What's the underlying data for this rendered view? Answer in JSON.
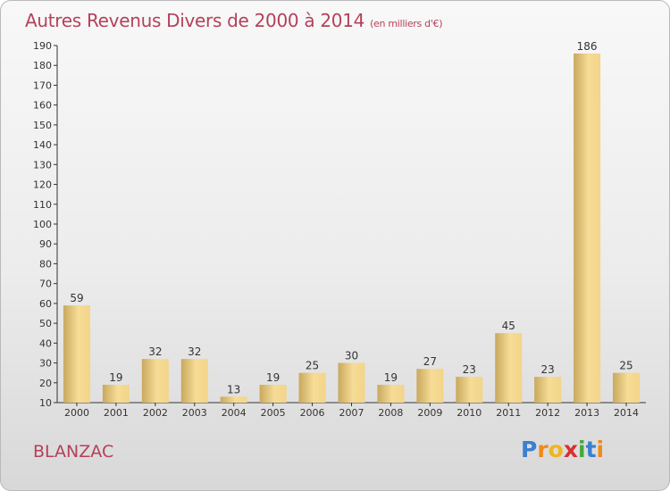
{
  "title": "Autres Revenus Divers de 2000 à 2014",
  "subtitle": "(en milliers d'€)",
  "town": "BLANZAC",
  "logo_text": "Proxiti",
  "colors": {
    "accent": "#b5405a",
    "bar_light": "#f6dc96",
    "bar_dark": "#c9a85e"
  },
  "chart_data": {
    "type": "bar",
    "categories": [
      "2000",
      "2001",
      "2002",
      "2003",
      "2004",
      "2005",
      "2006",
      "2007",
      "2008",
      "2009",
      "2010",
      "2011",
      "2012",
      "2013",
      "2014"
    ],
    "values": [
      59,
      19,
      32,
      32,
      13,
      19,
      25,
      30,
      19,
      27,
      23,
      45,
      23,
      186,
      25
    ],
    "title": "Autres Revenus Divers de 2000 à 2014",
    "ylim": [
      10,
      190
    ],
    "yticks": [
      10,
      20,
      30,
      40,
      50,
      60,
      70,
      80,
      90,
      100,
      110,
      120,
      130,
      140,
      150,
      160,
      170,
      180,
      190
    ],
    "grid": false
  }
}
